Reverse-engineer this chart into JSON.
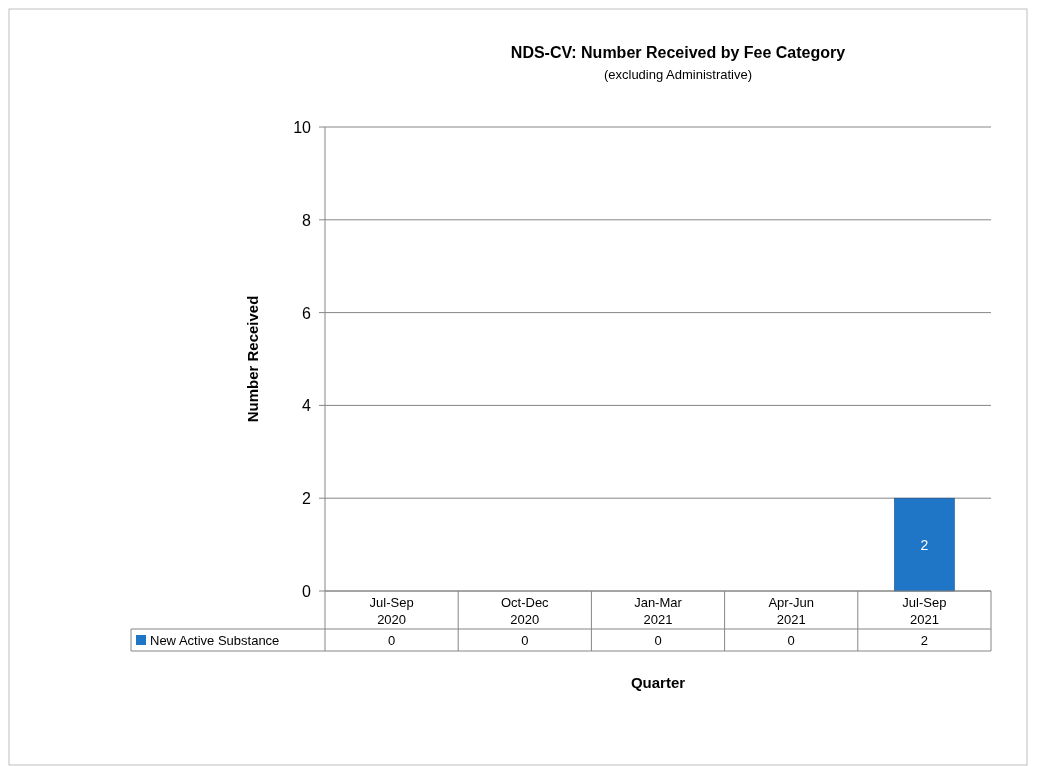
{
  "chart_data": {
    "type": "bar",
    "title": "NDS-CV:  Number Received by Fee Category",
    "subtitle": "(excluding Administrative)",
    "xlabel": "Quarter",
    "ylabel": "Number Received",
    "categories": [
      "Jul-Sep 2020",
      "Oct-Dec 2020",
      "Jan-Mar 2021",
      "Apr-Jun 2021",
      "Jul-Sep 2021"
    ],
    "series": [
      {
        "name": "New Active Substance",
        "color": "#1f75c6",
        "values": [
          0,
          0,
          0,
          0,
          2
        ],
        "value_labels": [
          "0",
          "0",
          "0",
          "0",
          "2"
        ]
      }
    ],
    "ylim": [
      0,
      10
    ],
    "yticks": [
      0,
      2,
      4,
      6,
      8,
      10
    ],
    "grid": "y",
    "legend": "bottom"
  }
}
